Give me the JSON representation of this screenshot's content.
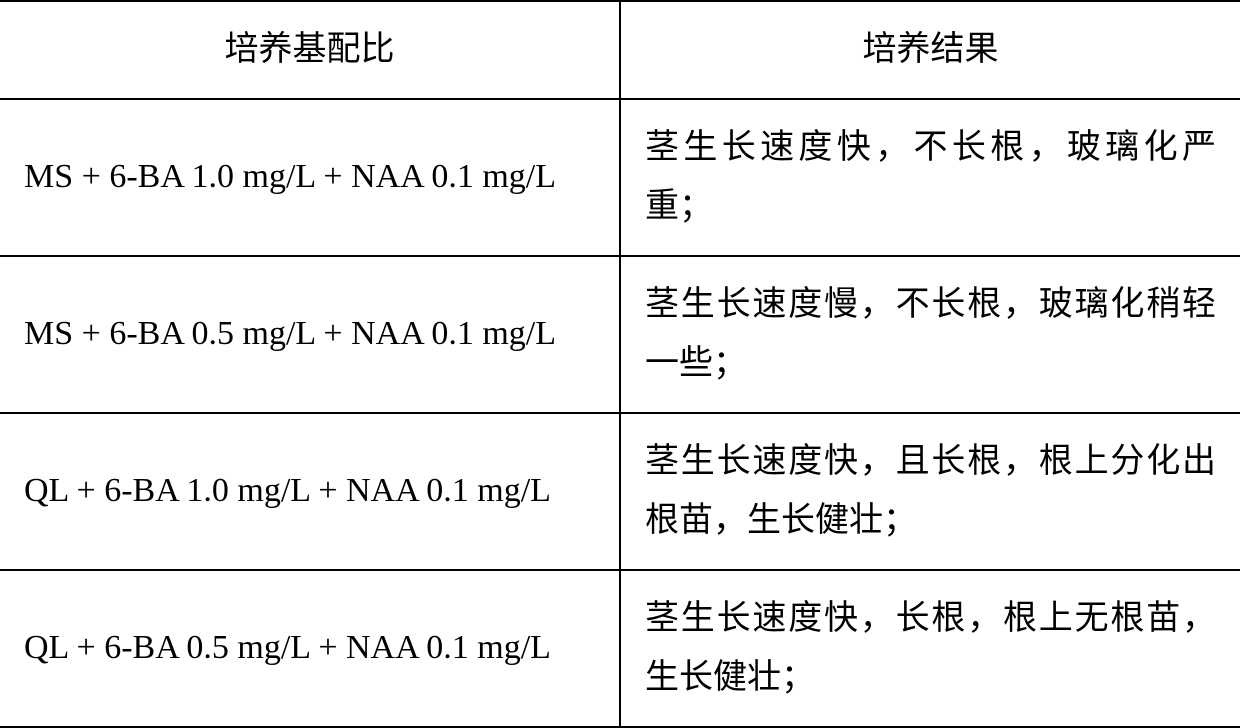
{
  "table": {
    "headers": {
      "col1": "培养基配比",
      "col2": "培养结果"
    },
    "rows": [
      {
        "formula": "MS + 6-BA 1.0 mg/L + NAA 0.1 mg/L",
        "result": "茎生长速度快，不长根，玻璃化严重；"
      },
      {
        "formula": "MS + 6-BA 0.5 mg/L + NAA 0.1 mg/L",
        "result": "茎生长速度慢，不长根，玻璃化稍轻一些；"
      },
      {
        "formula": "QL + 6-BA 1.0 mg/L + NAA 0.1 mg/L",
        "result": "茎生长速度快，且长根，根上分化出根苗，生长健壮；"
      },
      {
        "formula": "QL + 6-BA 0.5 mg/L + NAA 0.1 mg/L",
        "result": "茎生长速度快，长根，根上无根苗，生长健壮；"
      }
    ]
  }
}
